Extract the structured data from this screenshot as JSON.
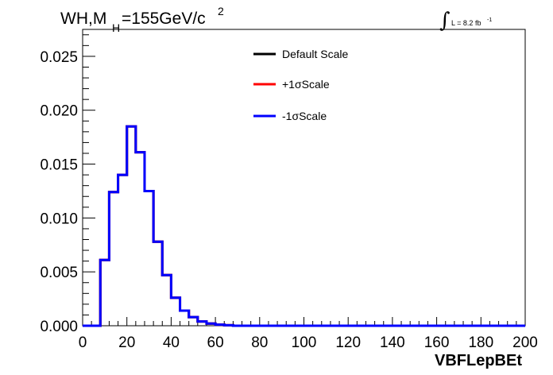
{
  "title": {
    "main": "WH,M",
    "sub": "H",
    "tail": "=155GeV/c",
    "sup": "2"
  },
  "lumi": {
    "text": "L = 8.2 fb",
    "sup": "-1"
  },
  "chart_data": {
    "type": "line",
    "xlabel": "VBFLepBEt",
    "ylabel": "",
    "xlim": [
      0,
      200
    ],
    "ylim": [
      0,
      0.0275
    ],
    "x_ticks": [
      "0",
      "20",
      "40",
      "60",
      "80",
      "100",
      "120",
      "140",
      "160",
      "180",
      "200"
    ],
    "y_ticks": [
      "0.000",
      "0.005",
      "0.010",
      "0.015",
      "0.020",
      "0.025"
    ],
    "grid": false,
    "legend_position": "top-center",
    "bin_edges": [
      0,
      4,
      8,
      12,
      16,
      20,
      24,
      28,
      32,
      36,
      40,
      44,
      48,
      52,
      56,
      60,
      64,
      68,
      72,
      200
    ],
    "series": [
      {
        "name": "Default Scale",
        "color": "#000000",
        "values": [
          0.0,
          0.0,
          0.0061,
          0.0124,
          0.014,
          0.0185,
          0.0161,
          0.0125,
          0.0078,
          0.0047,
          0.0026,
          0.0014,
          0.0008,
          0.0004,
          0.0002,
          0.0001,
          5e-05,
          0.0,
          0.0
        ]
      },
      {
        "name": "+1σScale",
        "color": "#ff0000",
        "values": [
          0.0,
          0.0,
          0.0061,
          0.0124,
          0.014,
          0.0185,
          0.0161,
          0.0125,
          0.0078,
          0.0047,
          0.0026,
          0.0014,
          0.0008,
          0.0004,
          0.0002,
          0.0001,
          5e-05,
          0.0,
          0.0
        ]
      },
      {
        "name": "-1σScale",
        "color": "#0000ff",
        "values": [
          0.0,
          0.0,
          0.0061,
          0.0124,
          0.014,
          0.0185,
          0.0161,
          0.0125,
          0.0078,
          0.0047,
          0.0026,
          0.0014,
          0.0008,
          0.0004,
          0.0002,
          0.0001,
          5e-05,
          0.0,
          0.0
        ]
      }
    ]
  }
}
